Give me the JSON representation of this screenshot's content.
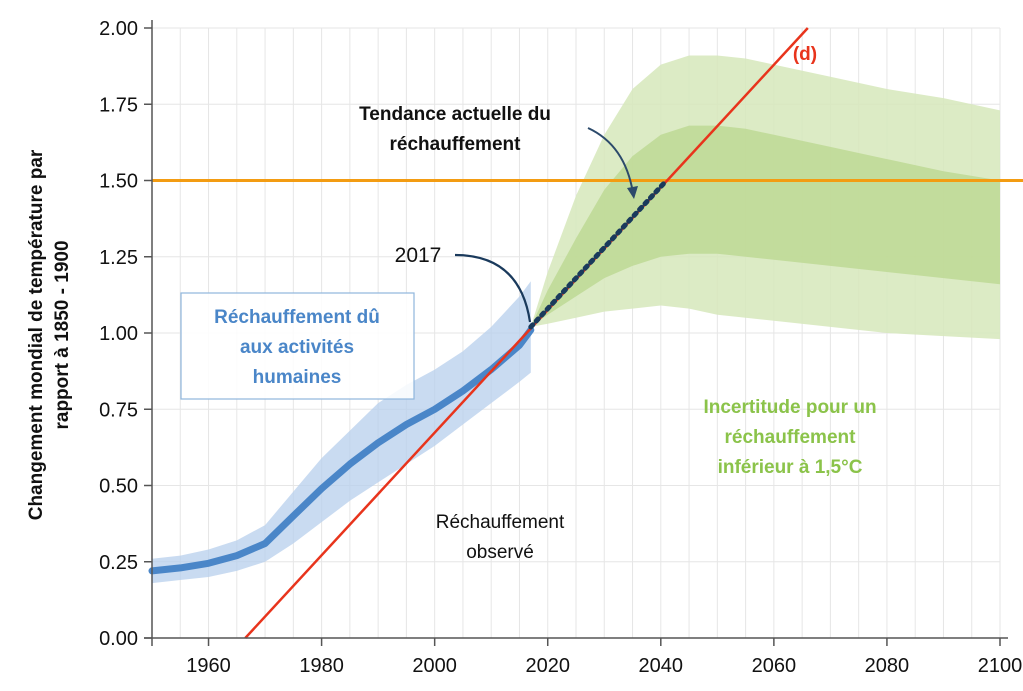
{
  "chart_data": {
    "type": "line",
    "ylabel_lines": [
      "Changement mondial de température par",
      "rapport à 1850 - 1900"
    ],
    "xlim": [
      1950,
      2100
    ],
    "ylim": [
      0,
      2
    ],
    "x_ticks": [
      1960,
      1980,
      2000,
      2020,
      2040,
      2060,
      2080,
      2100
    ],
    "y_ticks": [
      "0.00",
      "0.25",
      "0.50",
      "0.75",
      "1.00",
      "1.25",
      "1.50",
      "1.75",
      "2.00"
    ],
    "grid": true,
    "threshold": {
      "value": 1.5,
      "label": "1.50",
      "color": "#f39c12"
    },
    "series": [
      {
        "name": "Réchauffement dû aux activités humaines",
        "color": "#4a86c8",
        "x": [
          1950,
          1955,
          1960,
          1965,
          1970,
          1975,
          1980,
          1985,
          1990,
          1995,
          2000,
          2005,
          2010,
          2015,
          2017
        ],
        "y": [
          0.22,
          0.23,
          0.245,
          0.27,
          0.31,
          0.4,
          0.49,
          0.57,
          0.64,
          0.7,
          0.75,
          0.81,
          0.88,
          0.96,
          1.01
        ],
        "band_lower": [
          0.18,
          0.19,
          0.2,
          0.22,
          0.25,
          0.31,
          0.38,
          0.45,
          0.51,
          0.57,
          0.63,
          0.7,
          0.77,
          0.84,
          0.87
        ],
        "band_upper": [
          0.26,
          0.27,
          0.29,
          0.32,
          0.37,
          0.48,
          0.59,
          0.68,
          0.77,
          0.83,
          0.88,
          0.94,
          1.02,
          1.12,
          1.17
        ]
      },
      {
        "name": "(d)",
        "color": "#e8341c",
        "x": [
          1966.5,
          2066
        ],
        "y": [
          0.0,
          2.0
        ]
      },
      {
        "name": "Tendance actuelle du réchauffement",
        "color": "#1a3a5c",
        "x": [
          2017,
          2041
        ],
        "y": [
          1.02,
          1.5
        ]
      }
    ],
    "uncertainty": {
      "label": "Incertitude pour un réchauffement inférieur à 1,5°C",
      "color": "#8bc34a",
      "x": [
        2017,
        2020,
        2025,
        2030,
        2035,
        2040,
        2045,
        2050,
        2055,
        2060,
        2070,
        2080,
        2090,
        2100
      ],
      "outer_lower": [
        1.02,
        1.03,
        1.05,
        1.07,
        1.08,
        1.09,
        1.08,
        1.06,
        1.05,
        1.04,
        1.02,
        1.0,
        0.99,
        0.98
      ],
      "outer_upper": [
        1.02,
        1.2,
        1.45,
        1.65,
        1.8,
        1.88,
        1.91,
        1.91,
        1.9,
        1.88,
        1.84,
        1.8,
        1.77,
        1.73
      ],
      "inner_lower": [
        1.02,
        1.06,
        1.12,
        1.18,
        1.22,
        1.25,
        1.26,
        1.26,
        1.25,
        1.24,
        1.22,
        1.2,
        1.18,
        1.16
      ],
      "inner_upper": [
        1.02,
        1.14,
        1.31,
        1.47,
        1.58,
        1.65,
        1.68,
        1.68,
        1.67,
        1.65,
        1.61,
        1.57,
        1.53,
        1.5
      ]
    },
    "annotations": {
      "d_label": "(d)",
      "trend_line1": "Tendance actuelle du",
      "trend_line2": "réchauffement",
      "year_2017": "2017",
      "human_line1": "Réchauffement dû",
      "human_line2": "aux activités",
      "human_line3": "humaines",
      "observed_line1": "Réchauffement",
      "observed_line2": "observé",
      "uncert_line1": "Incertitude pour un",
      "uncert_line2": "réchauffement",
      "uncert_line3": "inférieur à 1,5°C"
    }
  }
}
